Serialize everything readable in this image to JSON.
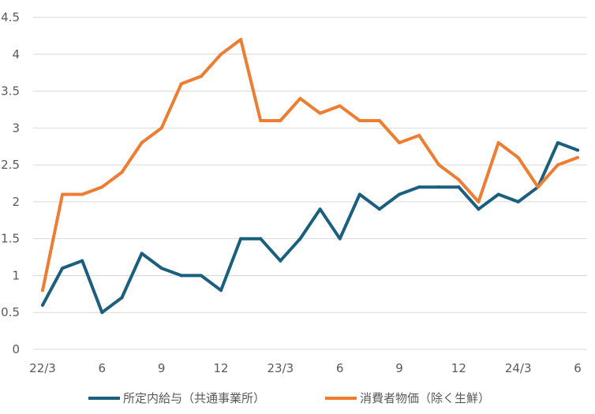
{
  "chart_data": {
    "type": "line",
    "title": "",
    "xlabel": "",
    "ylabel": "",
    "ylim": [
      0,
      4.5
    ],
    "yticks": [
      "0",
      "0.5",
      "1",
      "1.5",
      "2",
      "2.5",
      "3",
      "3.5",
      "4",
      "4.5"
    ],
    "grid": true,
    "legend_position": "bottom",
    "x": [
      "22/3",
      "4",
      "5",
      "6",
      "7",
      "8",
      "9",
      "10",
      "11",
      "12",
      "23/1",
      "2",
      "23/3",
      "4",
      "5",
      "6",
      "7",
      "8",
      "9",
      "10",
      "11",
      "12",
      "24/1",
      "2",
      "24/3",
      "4",
      "5",
      "6"
    ],
    "x_tick_labels": [
      {
        "index": 0,
        "label": "22/3"
      },
      {
        "index": 3,
        "label": "6"
      },
      {
        "index": 6,
        "label": "9"
      },
      {
        "index": 9,
        "label": "12"
      },
      {
        "index": 12,
        "label": "23/3"
      },
      {
        "index": 15,
        "label": "6"
      },
      {
        "index": 18,
        "label": "9"
      },
      {
        "index": 21,
        "label": "12"
      },
      {
        "index": 24,
        "label": "24/3"
      },
      {
        "index": 27,
        "label": "6"
      }
    ],
    "series": [
      {
        "name": "所定内給与（共通事業所）",
        "color": "#1b5f7f",
        "values": [
          0.6,
          1.1,
          1.2,
          0.5,
          0.7,
          1.3,
          1.1,
          1.0,
          1.0,
          0.8,
          1.5,
          1.5,
          1.2,
          1.5,
          1.9,
          1.5,
          2.1,
          1.9,
          2.1,
          2.2,
          2.2,
          2.2,
          1.9,
          2.1,
          2.0,
          2.2,
          2.8,
          2.7
        ]
      },
      {
        "name": "消費者物価（除く生鮮）",
        "color": "#ed7d31",
        "values": [
          0.8,
          2.1,
          2.1,
          2.2,
          2.4,
          2.8,
          3.0,
          3.6,
          3.7,
          4.0,
          4.2,
          3.1,
          3.1,
          3.4,
          3.2,
          3.3,
          3.1,
          3.1,
          2.8,
          2.9,
          2.5,
          2.3,
          2.0,
          2.8,
          2.6,
          2.2,
          2.5,
          2.6
        ]
      }
    ]
  }
}
